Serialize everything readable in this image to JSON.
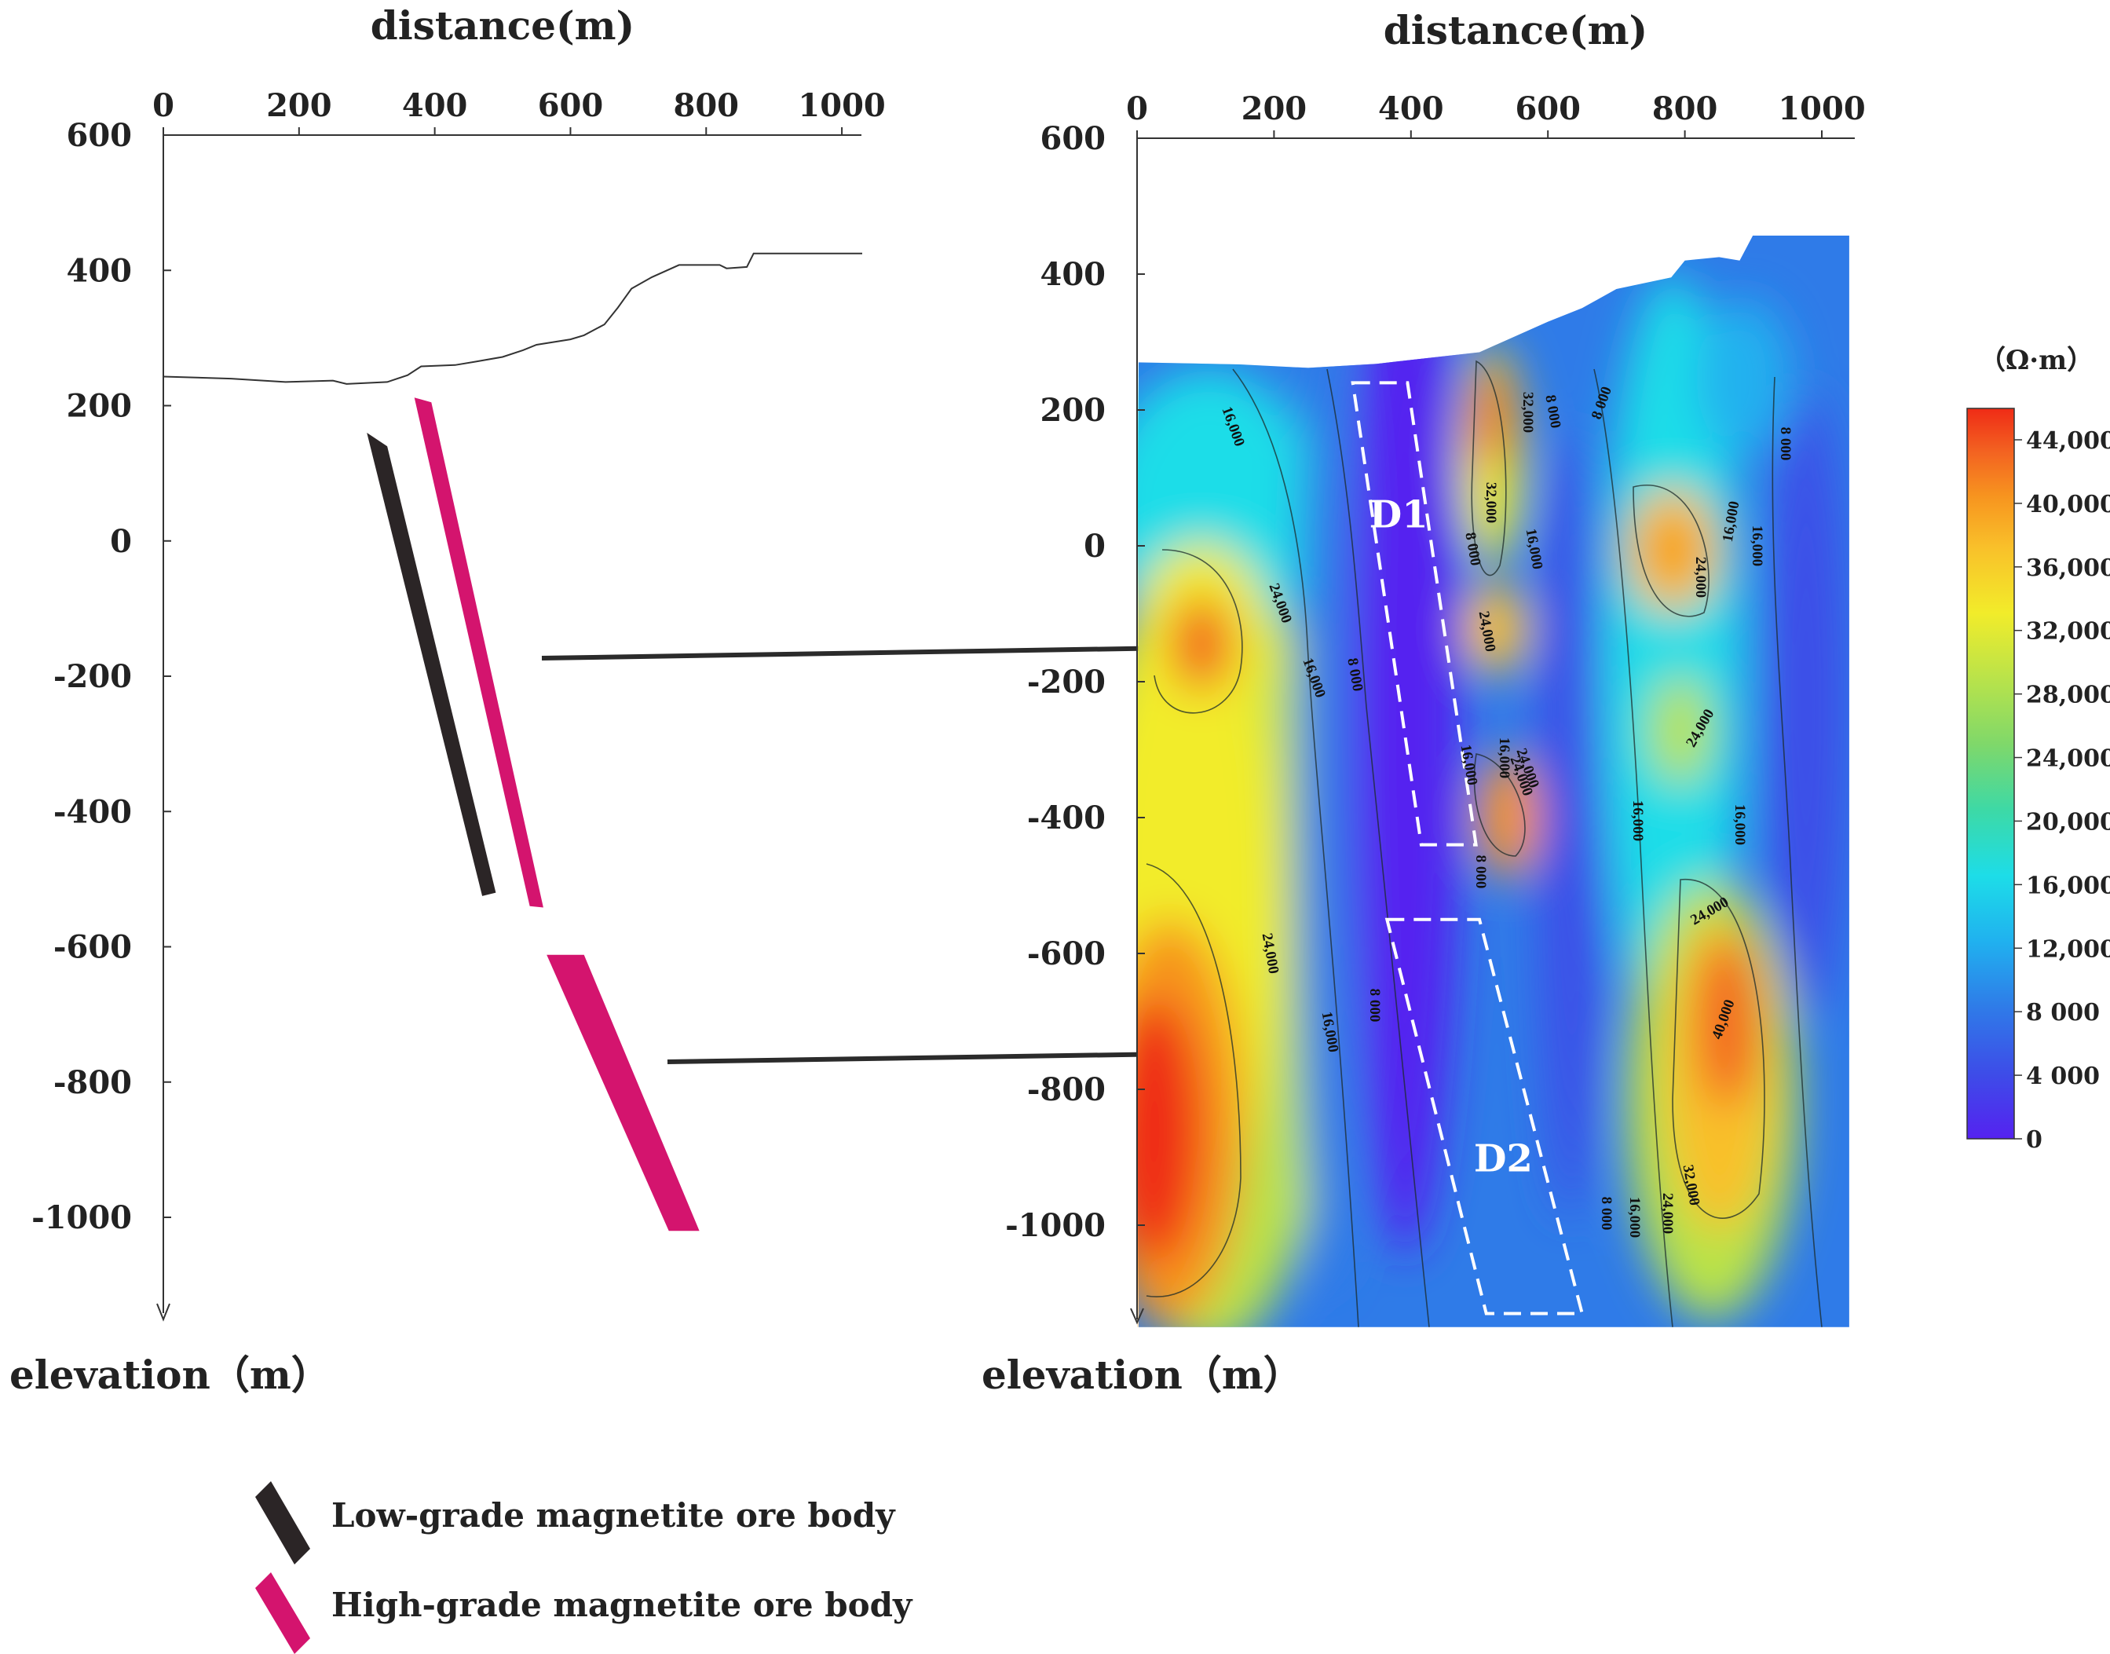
{
  "left_panel": {
    "x_axis_title": "distance(m)",
    "x_ticks": [
      0,
      200,
      400,
      600,
      800,
      1000
    ],
    "y_ticks": [
      600,
      400,
      200,
      0,
      -200,
      -400,
      -600,
      -800,
      -1000
    ],
    "y_axis_title": "elevation（m）",
    "x_range": [
      0,
      1020
    ],
    "y_range": [
      -1150,
      600
    ],
    "topography": [
      [
        0,
        243
      ],
      [
        100,
        240
      ],
      [
        180,
        235
      ],
      [
        250,
        237
      ],
      [
        270,
        232
      ],
      [
        330,
        235
      ],
      [
        360,
        245
      ],
      [
        380,
        258
      ],
      [
        430,
        260
      ],
      [
        460,
        265
      ],
      [
        500,
        272
      ],
      [
        530,
        282
      ],
      [
        550,
        290
      ],
      [
        600,
        298
      ],
      [
        620,
        304
      ],
      [
        650,
        320
      ],
      [
        670,
        345
      ],
      [
        690,
        373
      ],
      [
        720,
        390
      ],
      [
        760,
        408
      ],
      [
        820,
        408
      ],
      [
        830,
        403
      ],
      [
        860,
        405
      ],
      [
        870,
        425
      ],
      [
        1030,
        425
      ]
    ],
    "ore_bodies": [
      {
        "grade": "low",
        "color": "#2b2526",
        "polygon": [
          [
            300,
            160
          ],
          [
            330,
            140
          ],
          [
            490,
            -520
          ],
          [
            470,
            -525
          ]
        ]
      },
      {
        "grade": "high",
        "color": "#d4146e",
        "polygon": [
          [
            370,
            212
          ],
          [
            395,
            205
          ],
          [
            560,
            -542
          ],
          [
            540,
            -540
          ]
        ]
      },
      {
        "grade": "high",
        "color": "#d4146e",
        "polygon": [
          [
            565,
            -612
          ],
          [
            620,
            -612
          ],
          [
            790,
            -1020
          ],
          [
            745,
            -1020
          ]
        ]
      }
    ]
  },
  "right_panel": {
    "x_axis_title": "distance(m)",
    "x_ticks": [
      0,
      200,
      400,
      600,
      800,
      1000
    ],
    "y_ticks": [
      600,
      400,
      200,
      0,
      -200,
      -400,
      -600,
      -800,
      -1000
    ],
    "y_axis_title": "elevation（m）",
    "x_range": [
      0,
      1040
    ],
    "y_range": [
      -1150,
      600
    ],
    "anomalies": [
      {
        "label": "D1",
        "polygon": [
          [
            315,
            240
          ],
          [
            395,
            240
          ],
          [
            495,
            -440
          ],
          [
            415,
            -440
          ]
        ]
      },
      {
        "label": "D2",
        "polygon": [
          [
            365,
            -550
          ],
          [
            500,
            -550
          ],
          [
            650,
            -1130
          ],
          [
            510,
            -1130
          ]
        ]
      }
    ],
    "contour_labels": [
      "16,000",
      "24,000",
      "16,000",
      "8 000",
      "32,000",
      "24,000",
      "16,000",
      "8 000",
      "8 000",
      "32,000",
      "8 000",
      "16,000",
      "24,000",
      "24,000",
      "16,000",
      "8 000",
      "16,000",
      "24,000",
      "16,000",
      "24,000",
      "40,000",
      "8 000",
      "16,000",
      "24,000",
      "32,000",
      "8 000",
      "16,000",
      "24,000",
      "8 000",
      "16,000",
      "24,000",
      "16,000"
    ]
  },
  "colorbar": {
    "unit": "（Ω·m）",
    "tick_labels": [
      "44,000",
      "40,000",
      "36,000",
      "32,000",
      "28,000",
      "24,000",
      "20,000",
      "16,000",
      "12,000",
      "8 000",
      "4 000",
      "0"
    ],
    "colors": [
      "#ef2b16",
      "#f36321",
      "#f7941f",
      "#f9c02a",
      "#f2ec2a",
      "#b9e34a",
      "#7fd86a",
      "#3dd9a6",
      "#1ddde8",
      "#20b1ef",
      "#2f7be8",
      "#3d4de8",
      "#5522f0"
    ]
  },
  "legend": [
    {
      "label": "Low-grade magnetite ore body",
      "color": "#2b2526"
    },
    {
      "label": "High-grade magnetite ore body",
      "color": "#d4146e"
    }
  ],
  "arrows": [
    {
      "from_elev": -160,
      "to_label": "D1"
    },
    {
      "from_elev": -760,
      "to_label": "D2"
    }
  ]
}
